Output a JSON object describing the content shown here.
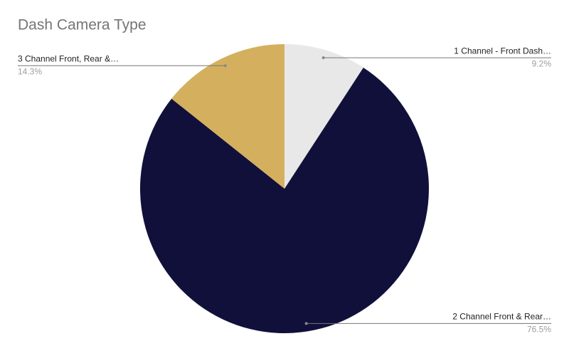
{
  "chart_data": {
    "type": "pie",
    "title": "Dash Camera Type",
    "categories": [
      "1 Channel - Front Dash…",
      "2 Channel Front & Rear…",
      "3 Channel Front, Rear &…"
    ],
    "values": [
      9.2,
      76.5,
      14.3
    ],
    "value_labels": [
      "9.2%",
      "76.5%",
      "14.3%"
    ],
    "colors": [
      "#e8e8e8",
      "#11103a",
      "#d4b05e"
    ]
  }
}
